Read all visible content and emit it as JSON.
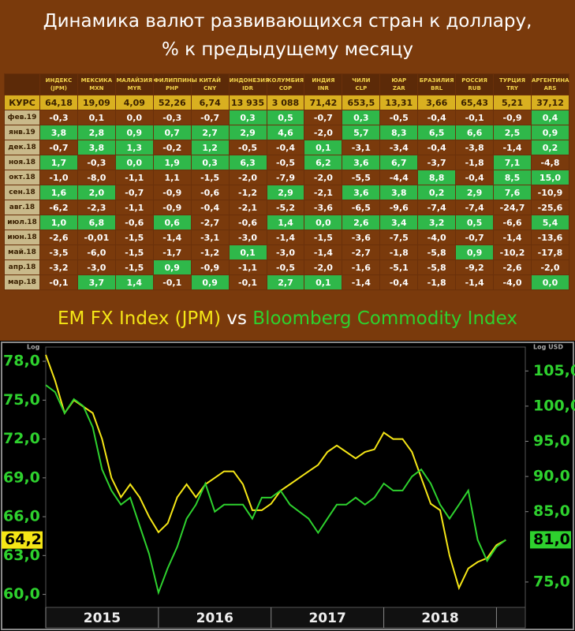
{
  "header": {
    "title_line1": "Динамика валют развивающихся стран к доллару,",
    "title_line2": "% к предыдущему месяцу"
  },
  "table": {
    "columns": [
      [
        "ИНДЕКС",
        "(JPM)"
      ],
      [
        "МЕКСИКА",
        "MXN"
      ],
      [
        "МАЛАЙЗИЯ",
        "MYR"
      ],
      [
        "ФИЛИППИНЫ",
        "PHP"
      ],
      [
        "КИТАЙ",
        "CNY"
      ],
      [
        "ИНДОНЕЗИЯ",
        "IDR"
      ],
      [
        "КОЛУМБИЯ",
        "COP"
      ],
      [
        "ИНДИЯ",
        "INR"
      ],
      [
        "ЧИЛИ",
        "CLP"
      ],
      [
        "ЮАР",
        "ZAR"
      ],
      [
        "БРАЗИЛИЯ",
        "BRL"
      ],
      [
        "РОССИЯ",
        "RUB"
      ],
      [
        "ТУРЦИЯ",
        "TRY"
      ],
      [
        "АРГЕНТИНА",
        "ARS"
      ]
    ],
    "rate_row": {
      "label": "КУРС",
      "cells": [
        "64,18",
        "19,09",
        "4,09",
        "52,26",
        "6,74",
        "13 935",
        "3 088",
        "71,42",
        "653,5",
        "13,31",
        "3,66",
        "65,43",
        "5,21",
        "37,12"
      ]
    },
    "rows": [
      {
        "label": "фев.19",
        "cells": [
          "-0,3",
          "0,1",
          "0,0",
          "-0,3",
          "-0,7",
          "0,3",
          "0,5",
          "-0,7",
          "0,3",
          "-0,5",
          "-0,4",
          "-0,1",
          "-0,9",
          "0,4"
        ],
        "green": [
          5,
          6,
          8,
          13
        ]
      },
      {
        "label": "янв.19",
        "cells": [
          "3,8",
          "2,8",
          "0,9",
          "0,7",
          "2,7",
          "2,9",
          "4,6",
          "-2,0",
          "5,7",
          "8,3",
          "6,5",
          "6,6",
          "2,5",
          "0,9"
        ],
        "green": [
          0,
          1,
          2,
          3,
          4,
          5,
          6,
          8,
          9,
          10,
          11,
          12,
          13
        ]
      },
      {
        "label": "дек.18",
        "cells": [
          "-0,7",
          "3,8",
          "1,3",
          "-0,2",
          "1,2",
          "-0,5",
          "-0,4",
          "0,1",
          "-3,1",
          "-3,4",
          "-0,4",
          "-3,8",
          "-1,4",
          "0,2"
        ],
        "green": [
          1,
          2,
          4,
          7,
          13
        ]
      },
      {
        "label": "ноя.18",
        "cells": [
          "1,7",
          "-0,3",
          "0,0",
          "1,9",
          "0,3",
          "6,3",
          "-0,5",
          "6,2",
          "3,6",
          "6,7",
          "-3,7",
          "-1,8",
          "7,1",
          "-4,8"
        ],
        "green": [
          0,
          2,
          3,
          4,
          5,
          7,
          8,
          9,
          12
        ]
      },
      {
        "label": "окт.18",
        "cells": [
          "-1,0",
          "-8,0",
          "-1,1",
          "1,1",
          "-1,5",
          "-2,0",
          "-7,9",
          "-2,0",
          "-5,5",
          "-4,4",
          "8,8",
          "-0,4",
          "8,5",
          "15,0"
        ],
        "green": [
          10,
          12,
          13
        ]
      },
      {
        "label": "сен.18",
        "cells": [
          "1,6",
          "2,0",
          "-0,7",
          "-0,9",
          "-0,6",
          "-1,2",
          "2,9",
          "-2,1",
          "3,6",
          "3,8",
          "0,2",
          "2,9",
          "7,6",
          "-10,9"
        ],
        "green": [
          0,
          1,
          6,
          8,
          9,
          10,
          11,
          12
        ]
      },
      {
        "label": "авг.18",
        "cells": [
          "-6,2",
          "-2,3",
          "-1,1",
          "-0,9",
          "-0,4",
          "-2,1",
          "-5,2",
          "-3,6",
          "-6,5",
          "-9,6",
          "-7,4",
          "-7,4",
          "-24,7",
          "-25,6"
        ],
        "green": []
      },
      {
        "label": "июл.18",
        "cells": [
          "1,0",
          "6,8",
          "-0,6",
          "0,6",
          "-2,7",
          "-0,6",
          "1,4",
          "0,0",
          "2,6",
          "3,4",
          "3,2",
          "0,5",
          "-6,6",
          "5,4"
        ],
        "green": [
          0,
          1,
          3,
          6,
          7,
          8,
          9,
          10,
          11,
          13
        ]
      },
      {
        "label": "июн.18",
        "cells": [
          "-2,6",
          "-0,01",
          "-1,5",
          "-1,4",
          "-3,1",
          "-3,0",
          "-1,4",
          "-1,5",
          "-3,6",
          "-7,5",
          "-4,0",
          "-0,7",
          "-1,4",
          "-13,6"
        ],
        "green": []
      },
      {
        "label": "май.18",
        "cells": [
          "-3,5",
          "-6,0",
          "-1,5",
          "-1,7",
          "-1,2",
          "0,1",
          "-3,0",
          "-1,4",
          "-2,7",
          "-1,8",
          "-5,8",
          "0,9",
          "-10,2",
          "-17,8"
        ],
        "green": [
          5,
          11
        ]
      },
      {
        "label": "апр.18",
        "cells": [
          "-3,2",
          "-3,0",
          "-1,5",
          "0,9",
          "-0,9",
          "-1,1",
          "-0,5",
          "-2,0",
          "-1,6",
          "-5,1",
          "-5,8",
          "-9,2",
          "-2,6",
          "-2,0"
        ],
        "green": [
          3
        ]
      },
      {
        "label": "мар.18",
        "cells": [
          "-0,1",
          "3,7",
          "1,4",
          "-0,1",
          "0,9",
          "-0,1",
          "2,7",
          "0,1",
          "-1,4",
          "-0,4",
          "-1,8",
          "-1,4",
          "-4,0",
          "0,0"
        ],
        "green": [
          1,
          2,
          4,
          6,
          7,
          13
        ]
      }
    ]
  },
  "chart_title": {
    "left": "EM FX Index (JPM)",
    "middle": "vs",
    "right": "Bloomberg Commodity Index"
  },
  "chart_data": {
    "type": "line",
    "axis_note_left": "Log",
    "axis_note_right": "Log USD",
    "x": [
      2015.0,
      2015.083,
      2015.167,
      2015.25,
      2015.333,
      2015.417,
      2015.5,
      2015.583,
      2015.667,
      2015.75,
      2015.833,
      2015.917,
      2016.0,
      2016.083,
      2016.167,
      2016.25,
      2016.333,
      2016.417,
      2016.5,
      2016.583,
      2016.667,
      2016.75,
      2016.833,
      2016.917,
      2017.0,
      2017.083,
      2017.167,
      2017.25,
      2017.333,
      2017.417,
      2017.5,
      2017.583,
      2017.667,
      2017.75,
      2017.833,
      2017.917,
      2018.0,
      2018.083,
      2018.167,
      2018.25,
      2018.333,
      2018.417,
      2018.5,
      2018.583,
      2018.667,
      2018.75,
      2018.833,
      2018.917,
      2019.0,
      2019.083
    ],
    "xlim": [
      2015,
      2019.2
    ],
    "xticks": [
      2015,
      2016,
      2017,
      2018
    ],
    "ylim": [
      59,
      79.1
    ],
    "yticks": [
      {
        "value": 60,
        "label": "60,0"
      },
      {
        "value": 63,
        "label": "63,0"
      },
      {
        "value": 66,
        "label": "66,0"
      },
      {
        "value": 69,
        "label": "69,0"
      },
      {
        "value": 72,
        "label": "72,0"
      },
      {
        "value": 75,
        "label": "75,0"
      },
      {
        "value": 78,
        "label": "78,0"
      }
    ],
    "y2lim": [
      71.4,
      108.4
    ],
    "y2ticks": [
      {
        "value": 75,
        "label": "75,0"
      },
      {
        "value": 85,
        "label": "85,0"
      },
      {
        "value": 90,
        "label": "90,0"
      },
      {
        "value": 95,
        "label": "95,0"
      },
      {
        "value": 100,
        "label": "100,0"
      },
      {
        "value": 105,
        "label": "105,0"
      }
    ],
    "series": [
      {
        "name": "EM FX Index (JPM)",
        "color": "#f5e616",
        "last_label": "64,2",
        "values": [
          78.5,
          76.5,
          74,
          75,
          74.5,
          74,
          72,
          69,
          67.5,
          68.5,
          67.5,
          66,
          64.8,
          65.5,
          67.5,
          68.5,
          67.5,
          68.5,
          69,
          69.5,
          69.5,
          68.5,
          66.5,
          66.5,
          67,
          68,
          68.5,
          69,
          69.5,
          70,
          71,
          71.5,
          71,
          70.5,
          71,
          71.2,
          72.5,
          72,
          72,
          71,
          69,
          67,
          66.5,
          63,
          60.5,
          62,
          62.5,
          62.8,
          63.8,
          64.2
        ]
      },
      {
        "name": "Bloomberg Commodity Index",
        "color": "#2ed12e",
        "axis": "y2",
        "last_label": "81,0",
        "values": [
          103,
          102,
          99,
          101,
          100,
          97,
          91,
          88,
          86,
          87,
          83,
          79,
          73.5,
          77,
          80,
          84,
          86,
          89,
          85,
          86,
          86,
          86,
          84,
          87,
          87,
          88,
          86,
          85,
          84,
          82,
          84,
          86,
          86,
          87,
          86,
          87,
          89,
          88,
          88,
          90,
          91,
          89,
          86,
          84,
          86,
          88,
          81,
          78,
          80,
          81
        ]
      }
    ]
  }
}
